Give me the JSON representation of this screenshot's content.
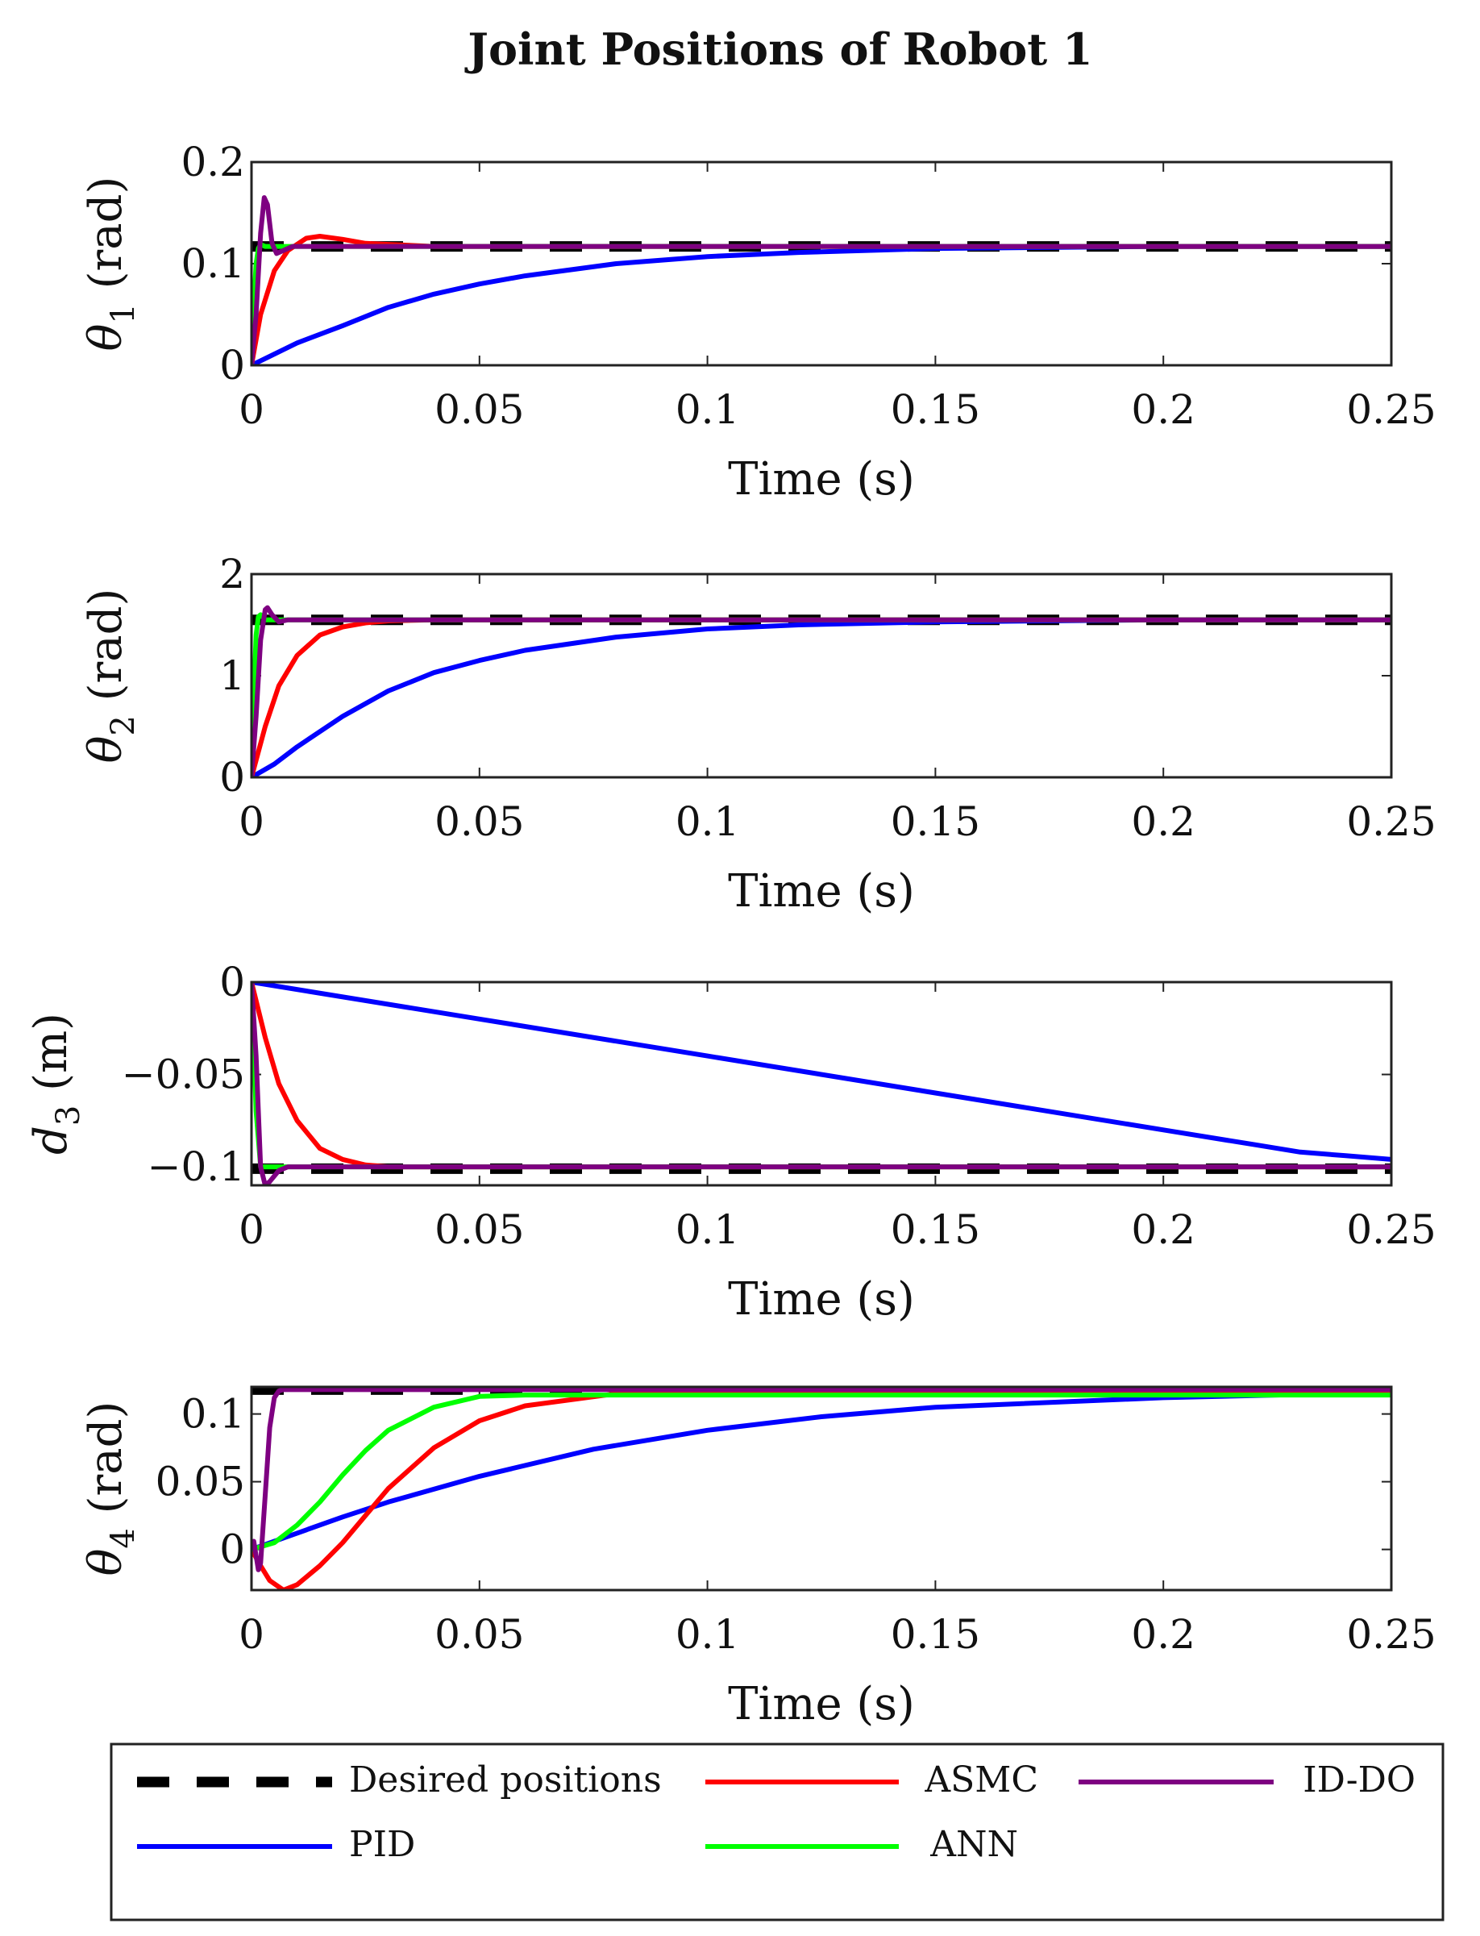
{
  "figure": {
    "title": "Joint Positions of Robot 1"
  },
  "colors": {
    "desired": "#000000",
    "pid": "#0000ff",
    "asmc": "#ff0000",
    "ann": "#00ff00",
    "iddo": "#7e0081"
  },
  "chart_data": [
    {
      "type": "line",
      "id": "theta1",
      "ylabel_base": "θ",
      "ylabel_sub": "1",
      "ylabel_unit": " (rad)",
      "xlabel": "Time (s)",
      "xlim": [
        0,
        0.25
      ],
      "ylim": [
        0,
        0.2
      ],
      "xticks": [
        0,
        0.05,
        0.1,
        0.15,
        0.2,
        0.25
      ],
      "xtick_labels": [
        "0",
        "0.05",
        "0.1",
        "0.15",
        "0.2",
        "0.25"
      ],
      "yticks": [
        0,
        0.1,
        0.2
      ],
      "ytick_labels": [
        "0",
        "0.1",
        "0.2"
      ],
      "series": [
        {
          "name": "Desired positions",
          "style": "dashed",
          "color_key": "desired",
          "x": [
            0,
            0.25
          ],
          "y": [
            0.117,
            0.117
          ]
        },
        {
          "name": "PID",
          "color_key": "pid",
          "x": [
            0,
            0.01,
            0.02,
            0.03,
            0.04,
            0.05,
            0.06,
            0.08,
            0.1,
            0.12,
            0.15,
            0.2,
            0.25
          ],
          "y": [
            0,
            0.022,
            0.039,
            0.057,
            0.07,
            0.08,
            0.088,
            0.1,
            0.107,
            0.111,
            0.115,
            0.117,
            0.117
          ]
        },
        {
          "name": "ASMC",
          "color_key": "asmc",
          "x": [
            0,
            0.002,
            0.005,
            0.008,
            0.012,
            0.015,
            0.02,
            0.025,
            0.03,
            0.04,
            0.05,
            0.25
          ],
          "y": [
            0,
            0.05,
            0.093,
            0.113,
            0.125,
            0.127,
            0.124,
            0.12,
            0.119,
            0.117,
            0.117,
            0.117
          ]
        },
        {
          "name": "ANN",
          "color_key": "ann",
          "x": [
            0,
            0.0005,
            0.001,
            0.0015,
            0.002,
            0.003,
            0.25
          ],
          "y": [
            0,
            0.06,
            0.1,
            0.115,
            0.119,
            0.117,
            0.117
          ]
        },
        {
          "name": "ID-DO",
          "color_key": "iddo",
          "x": [
            0,
            0.001,
            0.002,
            0.0028,
            0.0035,
            0.0045,
            0.0055,
            0.007,
            0.009,
            0.012,
            0.25
          ],
          "y": [
            0,
            0.05,
            0.13,
            0.165,
            0.158,
            0.12,
            0.11,
            0.113,
            0.117,
            0.117,
            0.117
          ]
        }
      ]
    },
    {
      "type": "line",
      "id": "theta2",
      "ylabel_base": "θ",
      "ylabel_sub": "2",
      "ylabel_unit": " (rad)",
      "xlabel": "Time (s)",
      "xlim": [
        0,
        0.25
      ],
      "ylim": [
        0,
        2
      ],
      "xticks": [
        0,
        0.05,
        0.1,
        0.15,
        0.2,
        0.25
      ],
      "xtick_labels": [
        "0",
        "0.05",
        "0.1",
        "0.15",
        "0.2",
        "0.25"
      ],
      "yticks": [
        0,
        1,
        2
      ],
      "ytick_labels": [
        "0",
        "1",
        "2"
      ],
      "series": [
        {
          "name": "Desired positions",
          "style": "dashed",
          "color_key": "desired",
          "x": [
            0,
            0.25
          ],
          "y": [
            1.55,
            1.55
          ]
        },
        {
          "name": "PID",
          "color_key": "pid",
          "x": [
            0,
            0.005,
            0.01,
            0.02,
            0.03,
            0.04,
            0.05,
            0.06,
            0.08,
            0.1,
            0.12,
            0.15,
            0.2,
            0.25
          ],
          "y": [
            0,
            0.13,
            0.3,
            0.6,
            0.85,
            1.03,
            1.15,
            1.25,
            1.38,
            1.46,
            1.5,
            1.53,
            1.55,
            1.55
          ]
        },
        {
          "name": "ASMC",
          "color_key": "asmc",
          "x": [
            0,
            0.003,
            0.006,
            0.01,
            0.015,
            0.02,
            0.025,
            0.03,
            0.04,
            0.05,
            0.25
          ],
          "y": [
            0,
            0.5,
            0.9,
            1.2,
            1.4,
            1.48,
            1.52,
            1.54,
            1.55,
            1.55,
            1.55
          ]
        },
        {
          "name": "ANN",
          "color_key": "ann",
          "x": [
            0,
            0.0005,
            0.001,
            0.0015,
            0.002,
            0.003,
            0.25
          ],
          "y": [
            0,
            0.8,
            1.4,
            1.58,
            1.6,
            1.55,
            1.55
          ]
        },
        {
          "name": "ID-DO",
          "color_key": "iddo",
          "x": [
            0,
            0.001,
            0.002,
            0.003,
            0.0035,
            0.0045,
            0.006,
            0.008,
            0.25
          ],
          "y": [
            0,
            0.6,
            1.35,
            1.65,
            1.67,
            1.6,
            1.53,
            1.55,
            1.55
          ]
        }
      ]
    },
    {
      "type": "line",
      "id": "d3",
      "ylabel_base": "d",
      "ylabel_sub": "3",
      "ylabel_unit": " (m)",
      "xlabel": "Time (s)",
      "xlim": [
        0,
        0.25
      ],
      "ylim": [
        -0.11,
        0
      ],
      "xticks": [
        0,
        0.05,
        0.1,
        0.15,
        0.2,
        0.25
      ],
      "xtick_labels": [
        "0",
        "0.05",
        "0.1",
        "0.15",
        "0.2",
        "0.25"
      ],
      "yticks": [
        0,
        -0.05,
        -0.1
      ],
      "ytick_labels": [
        "0",
        "−0.05",
        "−0.1"
      ],
      "series": [
        {
          "name": "Desired positions",
          "style": "dashed",
          "color_key": "desired",
          "x": [
            0,
            0.25
          ],
          "y": [
            -0.101,
            -0.101
          ]
        },
        {
          "name": "PID",
          "color_key": "pid",
          "x": [
            0,
            0.05,
            0.1,
            0.15,
            0.2,
            0.22,
            0.23,
            0.24,
            0.25
          ],
          "y": [
            0,
            -0.02,
            -0.04,
            -0.06,
            -0.08,
            -0.088,
            -0.092,
            -0.094,
            -0.096
          ]
        },
        {
          "name": "ASMC",
          "color_key": "asmc",
          "x": [
            0,
            0.003,
            0.006,
            0.01,
            0.015,
            0.02,
            0.025,
            0.03,
            0.035,
            0.25
          ],
          "y": [
            0,
            -0.03,
            -0.055,
            -0.075,
            -0.09,
            -0.096,
            -0.099,
            -0.1,
            -0.1,
            -0.1
          ]
        },
        {
          "name": "ANN",
          "color_key": "ann",
          "x": [
            0,
            0.001,
            0.002,
            0.003,
            0.25
          ],
          "y": [
            0,
            -0.07,
            -0.1,
            -0.1,
            -0.1
          ]
        },
        {
          "name": "ID-DO",
          "color_key": "iddo",
          "x": [
            0,
            0.001,
            0.002,
            0.003,
            0.004,
            0.006,
            0.008,
            0.25
          ],
          "y": [
            0,
            -0.04,
            -0.1,
            -0.11,
            -0.108,
            -0.102,
            -0.1,
            -0.1
          ]
        }
      ]
    },
    {
      "type": "line",
      "id": "theta4",
      "ylabel_base": "θ",
      "ylabel_sub": "4",
      "ylabel_unit": " (rad)",
      "xlabel": "Time (s)",
      "xlim": [
        0,
        0.25
      ],
      "ylim": [
        -0.03,
        0.12
      ],
      "xticks": [
        0,
        0.05,
        0.1,
        0.15,
        0.2,
        0.25
      ],
      "xtick_labels": [
        "0",
        "0.05",
        "0.1",
        "0.15",
        "0.2",
        "0.25"
      ],
      "yticks": [
        0,
        0.05,
        0.1
      ],
      "ytick_labels": [
        "0",
        "0.05",
        "0.1"
      ],
      "series": [
        {
          "name": "Desired positions",
          "style": "dashed",
          "color_key": "desired",
          "x": [
            0,
            0.25
          ],
          "y": [
            0.118,
            0.118
          ]
        },
        {
          "name": "PID",
          "color_key": "pid",
          "x": [
            0,
            0.01,
            0.02,
            0.03,
            0.05,
            0.075,
            0.1,
            0.125,
            0.15,
            0.2,
            0.25
          ],
          "y": [
            0,
            0.012,
            0.024,
            0.035,
            0.054,
            0.074,
            0.088,
            0.098,
            0.105,
            0.112,
            0.116
          ]
        },
        {
          "name": "ASMC",
          "color_key": "asmc",
          "x": [
            0,
            0.002,
            0.004,
            0.007,
            0.01,
            0.015,
            0.02,
            0.025,
            0.03,
            0.04,
            0.05,
            0.06,
            0.08,
            0.1,
            0.25
          ],
          "y": [
            0,
            -0.012,
            -0.023,
            -0.03,
            -0.026,
            -0.012,
            0.005,
            0.025,
            0.045,
            0.075,
            0.095,
            0.106,
            0.115,
            0.117,
            0.117
          ]
        },
        {
          "name": "ANN",
          "color_key": "ann",
          "x": [
            0,
            0.005,
            0.01,
            0.015,
            0.02,
            0.025,
            0.03,
            0.04,
            0.05,
            0.06,
            0.08,
            0.25
          ],
          "y": [
            0,
            0.005,
            0.018,
            0.035,
            0.055,
            0.073,
            0.088,
            0.105,
            0.113,
            0.114,
            0.114,
            0.114
          ]
        },
        {
          "name": "ID-DO",
          "color_key": "iddo",
          "x": [
            0,
            0.0005,
            0.0015,
            0.002,
            0.003,
            0.004,
            0.005,
            0.006,
            0.007,
            0.25
          ],
          "y": [
            0,
            0.006,
            -0.015,
            -0.01,
            0.04,
            0.09,
            0.112,
            0.117,
            0.118,
            0.118
          ]
        }
      ]
    }
  ],
  "legend": {
    "items": [
      {
        "label": "Desired positions",
        "color_key": "desired",
        "style": "dashed"
      },
      {
        "label": "ASMC",
        "color_key": "asmc",
        "style": "solid"
      },
      {
        "label": "ID-DO",
        "color_key": "iddo",
        "style": "solid"
      },
      {
        "label": "PID",
        "color_key": "pid",
        "style": "solid"
      },
      {
        "label": "ANN",
        "color_key": "ann",
        "style": "solid"
      }
    ]
  }
}
